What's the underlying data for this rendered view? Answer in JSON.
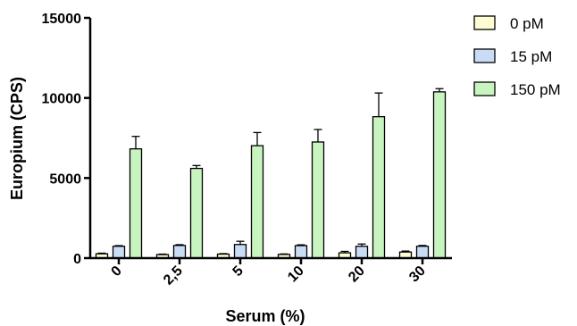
{
  "chart_data": {
    "type": "bar",
    "xlabel": "Serum (%)",
    "ylabel": "Europium (CPS)",
    "categories": [
      "0",
      "2,5",
      "5",
      "10",
      "20",
      "30"
    ],
    "ylim": [
      0,
      15000
    ],
    "yticks": [
      "0",
      "5000",
      "10000",
      "15000"
    ],
    "legend_position": "top-right",
    "error_bars": true,
    "series": [
      {
        "name": "0 pM",
        "color": "#fdfcd3",
        "values": [
          270,
          220,
          250,
          230,
          330,
          380
        ],
        "errors": [
          40,
          30,
          30,
          30,
          90,
          60
        ]
      },
      {
        "name": "15 pM",
        "color": "#c9dcf6",
        "values": [
          740,
          790,
          850,
          780,
          740,
          740
        ],
        "errors": [
          40,
          50,
          200,
          50,
          140,
          50
        ]
      },
      {
        "name": "150 pM",
        "color": "#c8f4c0",
        "values": [
          6820,
          5600,
          7020,
          7250,
          8830,
          10380
        ],
        "errors": [
          780,
          180,
          820,
          780,
          1480,
          200
        ]
      }
    ]
  }
}
